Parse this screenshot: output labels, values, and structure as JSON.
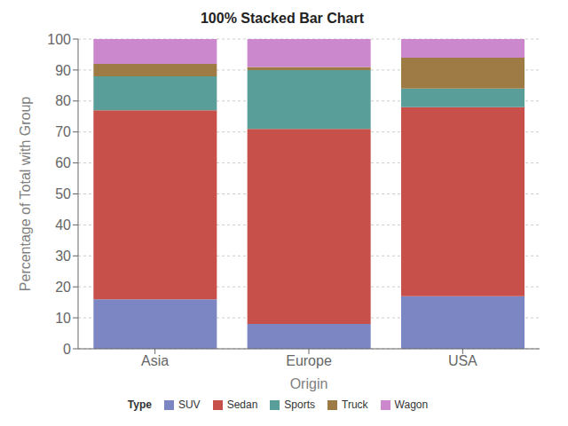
{
  "chart_data": {
    "type": "bar",
    "title": "100% Stacked Bar Chart",
    "xlabel": "Origin",
    "ylabel": "Percentage of Total with Group",
    "categories": [
      "Asia",
      "Europe",
      "USA"
    ],
    "series": [
      {
        "name": "SUV",
        "color": "#7b86c2",
        "values": [
          16.0,
          8.0,
          17.0
        ]
      },
      {
        "name": "Sedan",
        "color": "#c8504a",
        "values": [
          61.0,
          63.0,
          61.0
        ]
      },
      {
        "name": "Sports",
        "color": "#5a9e9a",
        "values": [
          11.0,
          19.0,
          6.0
        ]
      },
      {
        "name": "Truck",
        "color": "#9e7b45",
        "values": [
          4.0,
          1.0,
          10.0
        ]
      },
      {
        "name": "Wagon",
        "color": "#cc88cc",
        "values": [
          8.0,
          9.0,
          6.0
        ]
      }
    ],
    "ylim": [
      0,
      100
    ],
    "yticks": [
      0,
      10,
      20,
      30,
      40,
      50,
      60,
      70,
      80,
      90,
      100
    ],
    "grid": true,
    "stacked": true,
    "legend": "bottom",
    "legend_title": "Type"
  }
}
